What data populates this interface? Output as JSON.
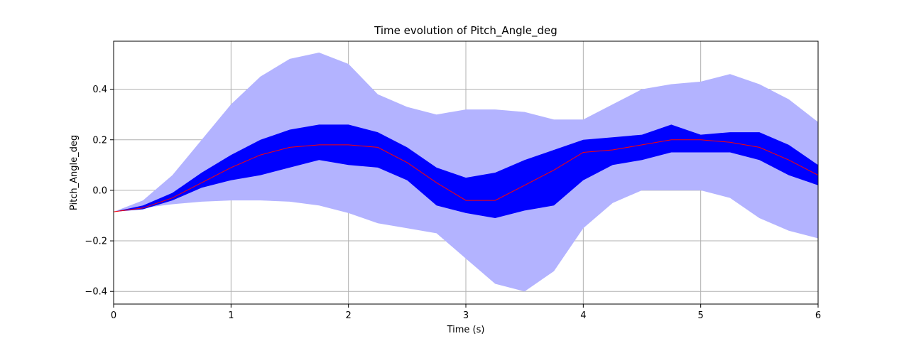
{
  "chart_data": {
    "type": "area",
    "title": "Time evolution of Pitch_Angle_deg",
    "xlabel": "Time (s)",
    "ylabel": "Pitch_Angle_deg",
    "xlim": [
      0,
      6
    ],
    "ylim": [
      -0.45,
      0.59
    ],
    "grid": true,
    "x_ticks": [
      0,
      1,
      2,
      3,
      4,
      5,
      6
    ],
    "x_tick_labels": [
      "0",
      "1",
      "2",
      "3",
      "4",
      "5",
      "6"
    ],
    "y_ticks": [
      -0.4,
      -0.2,
      0.0,
      0.2,
      0.4
    ],
    "y_tick_labels": [
      "−0.4",
      "−0.2",
      "0.0",
      "0.2",
      "0.4"
    ],
    "colors": {
      "outer_band": "#b3b3ff",
      "inner_band": "#0000ff",
      "mean_line": "#ff0000",
      "grid": "#b0b0b0"
    },
    "x": [
      0,
      0.25,
      0.5,
      0.75,
      1.0,
      1.25,
      1.5,
      1.75,
      2.0,
      2.25,
      2.5,
      2.75,
      3.0,
      3.25,
      3.5,
      3.75,
      4.0,
      4.25,
      4.5,
      4.75,
      5.0,
      5.25,
      5.5,
      5.75,
      6.0
    ],
    "series": [
      {
        "role": "outer_upper",
        "values": [
          -0.085,
          -0.04,
          0.06,
          0.2,
          0.34,
          0.45,
          0.52,
          0.545,
          0.5,
          0.38,
          0.33,
          0.3,
          0.32,
          0.32,
          0.31,
          0.28,
          0.28,
          0.34,
          0.4,
          0.42,
          0.43,
          0.46,
          0.42,
          0.36,
          0.27
        ]
      },
      {
        "role": "outer_lower",
        "values": [
          -0.085,
          -0.07,
          -0.055,
          -0.045,
          -0.04,
          -0.04,
          -0.045,
          -0.06,
          -0.09,
          -0.13,
          -0.15,
          -0.17,
          -0.27,
          -0.37,
          -0.4,
          -0.32,
          -0.15,
          -0.05,
          0.0,
          0.0,
          0.0,
          -0.03,
          -0.11,
          -0.16,
          -0.19
        ]
      },
      {
        "role": "inner_upper",
        "values": [
          -0.085,
          -0.06,
          -0.01,
          0.07,
          0.14,
          0.2,
          0.24,
          0.26,
          0.26,
          0.23,
          0.17,
          0.09,
          0.05,
          0.07,
          0.12,
          0.16,
          0.2,
          0.21,
          0.22,
          0.26,
          0.22,
          0.23,
          0.23,
          0.18,
          0.1
        ]
      },
      {
        "role": "inner_lower",
        "values": [
          -0.085,
          -0.075,
          -0.04,
          0.01,
          0.04,
          0.06,
          0.09,
          0.12,
          0.1,
          0.09,
          0.04,
          -0.06,
          -0.09,
          -0.11,
          -0.08,
          -0.06,
          0.04,
          0.1,
          0.12,
          0.15,
          0.15,
          0.15,
          0.12,
          0.06,
          0.02
        ]
      },
      {
        "role": "mean",
        "values": [
          -0.085,
          -0.07,
          -0.03,
          0.03,
          0.09,
          0.14,
          0.17,
          0.18,
          0.18,
          0.17,
          0.11,
          0.03,
          -0.04,
          -0.04,
          0.02,
          0.08,
          0.15,
          0.16,
          0.18,
          0.2,
          0.2,
          0.19,
          0.17,
          0.12,
          0.06
        ]
      }
    ]
  }
}
